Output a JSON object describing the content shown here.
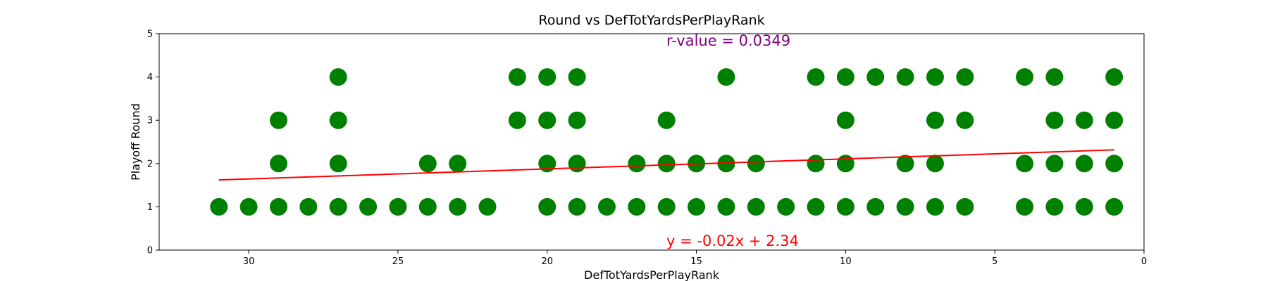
{
  "chart_data": {
    "type": "scatter",
    "title": "Round vs DefTotYardsPerPlayRank",
    "xlabel": "DefTotYardsPerPlayRank",
    "ylabel": "Playoff Round",
    "xlim": [
      33,
      0
    ],
    "ylim": [
      0,
      5
    ],
    "x_inverted": true,
    "x_ticks": [
      30,
      25,
      20,
      15,
      10,
      5,
      0
    ],
    "y_ticks": [
      0,
      1,
      2,
      3,
      4,
      5
    ],
    "grid": false,
    "colors": {
      "points": "#008000",
      "fit_line": "#ff0000",
      "r_annotation": "#800080",
      "eq_annotation": "#ff0000"
    },
    "points": [
      {
        "x": 31,
        "y": 1
      },
      {
        "x": 30,
        "y": 1
      },
      {
        "x": 29,
        "y": 1
      },
      {
        "x": 29,
        "y": 2
      },
      {
        "x": 29,
        "y": 3
      },
      {
        "x": 28,
        "y": 1
      },
      {
        "x": 27,
        "y": 1
      },
      {
        "x": 27,
        "y": 2
      },
      {
        "x": 27,
        "y": 3
      },
      {
        "x": 27,
        "y": 4
      },
      {
        "x": 26,
        "y": 1
      },
      {
        "x": 25,
        "y": 1
      },
      {
        "x": 24,
        "y": 1
      },
      {
        "x": 24,
        "y": 2
      },
      {
        "x": 23,
        "y": 1
      },
      {
        "x": 23,
        "y": 2
      },
      {
        "x": 22,
        "y": 1
      },
      {
        "x": 21,
        "y": 3
      },
      {
        "x": 21,
        "y": 4
      },
      {
        "x": 20,
        "y": 1
      },
      {
        "x": 20,
        "y": 2
      },
      {
        "x": 20,
        "y": 3
      },
      {
        "x": 20,
        "y": 4
      },
      {
        "x": 19,
        "y": 1
      },
      {
        "x": 19,
        "y": 2
      },
      {
        "x": 19,
        "y": 3
      },
      {
        "x": 19,
        "y": 4
      },
      {
        "x": 18,
        "y": 1
      },
      {
        "x": 17,
        "y": 1
      },
      {
        "x": 17,
        "y": 2
      },
      {
        "x": 16,
        "y": 1
      },
      {
        "x": 16,
        "y": 2
      },
      {
        "x": 16,
        "y": 3
      },
      {
        "x": 15,
        "y": 1
      },
      {
        "x": 15,
        "y": 2
      },
      {
        "x": 14,
        "y": 1
      },
      {
        "x": 14,
        "y": 2
      },
      {
        "x": 14,
        "y": 4
      },
      {
        "x": 13,
        "y": 1
      },
      {
        "x": 13,
        "y": 2
      },
      {
        "x": 12,
        "y": 1
      },
      {
        "x": 11,
        "y": 1
      },
      {
        "x": 11,
        "y": 2
      },
      {
        "x": 11,
        "y": 4
      },
      {
        "x": 10,
        "y": 1
      },
      {
        "x": 10,
        "y": 2
      },
      {
        "x": 10,
        "y": 3
      },
      {
        "x": 10,
        "y": 4
      },
      {
        "x": 9,
        "y": 1
      },
      {
        "x": 9,
        "y": 4
      },
      {
        "x": 8,
        "y": 1
      },
      {
        "x": 8,
        "y": 2
      },
      {
        "x": 8,
        "y": 4
      },
      {
        "x": 7,
        "y": 1
      },
      {
        "x": 7,
        "y": 2
      },
      {
        "x": 7,
        "y": 3
      },
      {
        "x": 7,
        "y": 4
      },
      {
        "x": 6,
        "y": 1
      },
      {
        "x": 6,
        "y": 3
      },
      {
        "x": 6,
        "y": 4
      },
      {
        "x": 4,
        "y": 1
      },
      {
        "x": 4,
        "y": 2
      },
      {
        "x": 4,
        "y": 4
      },
      {
        "x": 3,
        "y": 1
      },
      {
        "x": 3,
        "y": 2
      },
      {
        "x": 3,
        "y": 3
      },
      {
        "x": 3,
        "y": 4
      },
      {
        "x": 2,
        "y": 1
      },
      {
        "x": 2,
        "y": 2
      },
      {
        "x": 2,
        "y": 3
      },
      {
        "x": 1,
        "y": 1
      },
      {
        "x": 1,
        "y": 2
      },
      {
        "x": 1,
        "y": 3
      },
      {
        "x": 1,
        "y": 4
      }
    ],
    "fit_line": {
      "slope": -0.0232,
      "intercept": 2.34,
      "x_range": [
        31,
        1
      ]
    },
    "annotations": {
      "r_value": "r-value = 0.0349",
      "equation": "y = -0.02x + 2.34"
    }
  }
}
